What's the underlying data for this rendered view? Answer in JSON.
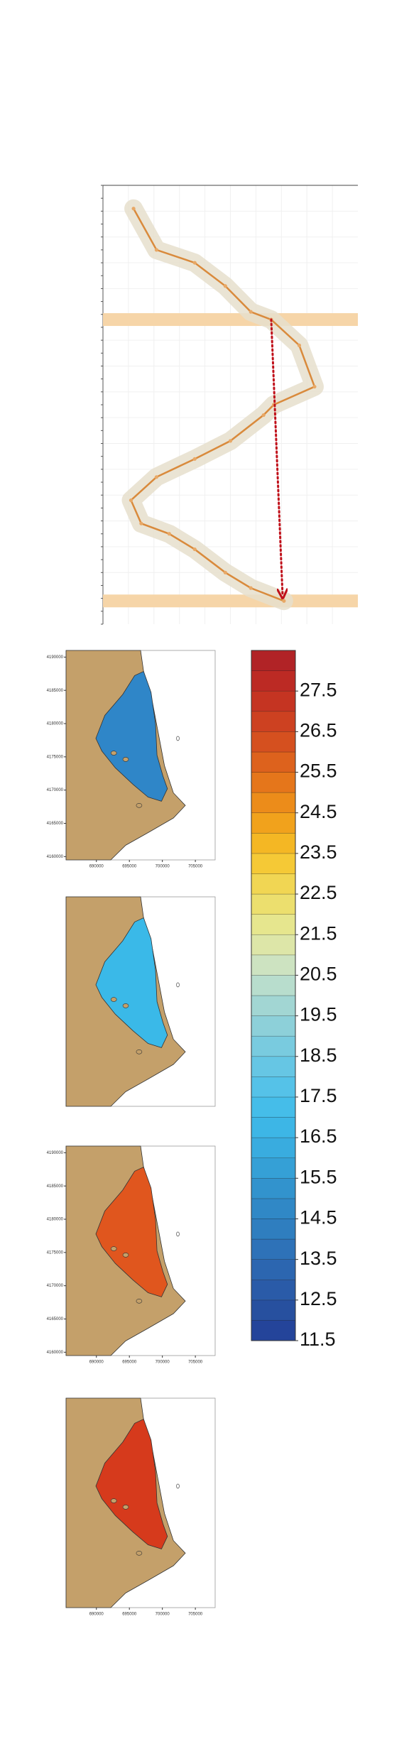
{
  "chart_data": {
    "type": "line",
    "color": "#d98a3c",
    "band_color": "#f6d5a8",
    "envelope_color": "#e6dfcc",
    "arrow_color": "#c0101a",
    "y_inverted": true,
    "xlim": [
      0,
      10
    ],
    "ylim": [
      0,
      17
    ],
    "x": [
      1.2,
      2.1,
      3.6,
      4.8,
      5.8,
      6.6,
      7.7,
      8.3,
      6.7,
      6.3,
      5.0,
      3.6,
      2.1,
      1.1,
      1.5,
      2.6,
      3.6,
      4.8,
      5.8,
      7.1
    ],
    "values": [
      0.9,
      2.5,
      3.0,
      3.9,
      4.9,
      5.2,
      6.2,
      7.8,
      8.5,
      8.9,
      9.9,
      10.6,
      11.3,
      12.2,
      13.1,
      13.5,
      14.1,
      15.0,
      15.6,
      16.1
    ]
  },
  "maps": [
    {
      "lake_color": "#2f86c8",
      "xlim": [
        685400,
        708000
      ],
      "ylim": [
        4159500,
        4191000
      ],
      "xticks": [
        690000,
        695000,
        700000,
        705000
      ],
      "yticks": [
        4160000,
        4165000,
        4170000,
        4175000,
        4180000,
        4185000,
        4190000
      ]
    },
    {
      "lake_color": "#3ab9e8"
    },
    {
      "lake_color": "#e0561e",
      "xlim": [
        685400,
        708000
      ],
      "ylim": [
        4159500,
        4191000
      ],
      "xticks": [
        690000,
        695000,
        700000,
        705000
      ],
      "yticks": [
        4160000,
        4165000,
        4170000,
        4175000,
        4180000,
        4185000,
        4190000
      ]
    },
    {
      "lake_color": "#d63a1c",
      "xlim": [
        685400,
        708000
      ],
      "xticks": [
        690000,
        695000,
        700000,
        705000
      ]
    }
  ],
  "land_color": "#c4a06a",
  "colorbar": {
    "clim": [
      11.5,
      28.5
    ],
    "colors": [
      "#24449a",
      "#27509f",
      "#2a5ba8",
      "#2c66b0",
      "#2e72b8",
      "#2f7ebf",
      "#3088c6",
      "#3293cd",
      "#35a0d6",
      "#39acdf",
      "#3db6e6",
      "#45bde9",
      "#55c2e8",
      "#66c6e4",
      "#79cbdf",
      "#8dd0d9",
      "#a2d6d3",
      "#b8ddcd",
      "#cde3c1",
      "#dde6a8",
      "#e6e68e",
      "#ecdf6e",
      "#f1d653",
      "#f5c936",
      "#f4b724",
      "#f1a21c",
      "#ec8c1a",
      "#e5761b",
      "#dd621d",
      "#d5501f",
      "#cd4121",
      "#c53422",
      "#bc2a24",
      "#b12326"
    ],
    "ticks": [
      11.5,
      12.5,
      13.5,
      14.5,
      15.5,
      16.5,
      17.5,
      18.5,
      19.5,
      20.5,
      21.5,
      22.5,
      23.5,
      24.5,
      25.5,
      26.5,
      27.5
    ]
  }
}
